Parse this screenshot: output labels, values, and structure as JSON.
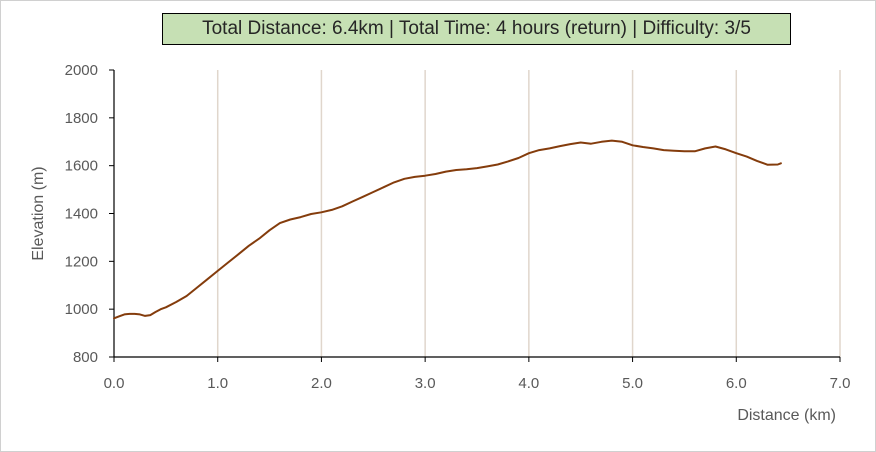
{
  "chart_data": {
    "type": "line",
    "title": "Total Distance: 6.4km | Total Time: 4 hours (return) | Difficulty: 3/5",
    "xlabel": "Distance (km)",
    "ylabel": "Elevation (m)",
    "xlim": [
      0,
      7
    ],
    "ylim": [
      800,
      2000
    ],
    "x_ticks": [
      "0.0",
      "1.0",
      "2.0",
      "3.0",
      "4.0",
      "5.0",
      "6.0",
      "7.0"
    ],
    "y_ticks": [
      "800",
      "1000",
      "1200",
      "1400",
      "1600",
      "1800",
      "2000"
    ],
    "grid": "vertical",
    "line_color": "#843c0c",
    "grid_color": "#e0d6cc",
    "title_box_color": "#c6e0b4",
    "series": [
      {
        "x": [
          0.0,
          0.05,
          0.1,
          0.15,
          0.2,
          0.25,
          0.3,
          0.35,
          0.4,
          0.45,
          0.5,
          0.6,
          0.7,
          0.8,
          0.9,
          1.0,
          1.1,
          1.2,
          1.3,
          1.4,
          1.5,
          1.6,
          1.7,
          1.8,
          1.9,
          2.0,
          2.1,
          2.2,
          2.3,
          2.4,
          2.5,
          2.6,
          2.7,
          2.8,
          2.9,
          3.0,
          3.1,
          3.2,
          3.3,
          3.4,
          3.5,
          3.6,
          3.7,
          3.8,
          3.9,
          4.0,
          4.1,
          4.2,
          4.3,
          4.4,
          4.5,
          4.6,
          4.7,
          4.8,
          4.9,
          5.0,
          5.1,
          5.2,
          5.3,
          5.4,
          5.5,
          5.6,
          5.7,
          5.8,
          5.9,
          6.0,
          6.1,
          6.2,
          6.3,
          6.4,
          6.43
        ],
        "y": [
          962,
          970,
          978,
          980,
          980,
          978,
          972,
          975,
          988,
          1000,
          1008,
          1030,
          1055,
          1090,
          1125,
          1160,
          1195,
          1230,
          1265,
          1295,
          1330,
          1360,
          1375,
          1385,
          1398,
          1405,
          1415,
          1430,
          1450,
          1470,
          1490,
          1510,
          1530,
          1545,
          1553,
          1558,
          1565,
          1575,
          1582,
          1585,
          1590,
          1597,
          1605,
          1618,
          1632,
          1652,
          1665,
          1672,
          1682,
          1690,
          1697,
          1692,
          1700,
          1705,
          1700,
          1685,
          1678,
          1672,
          1665,
          1662,
          1660,
          1660,
          1672,
          1680,
          1668,
          1652,
          1638,
          1620,
          1604,
          1605,
          1610
        ]
      }
    ]
  }
}
